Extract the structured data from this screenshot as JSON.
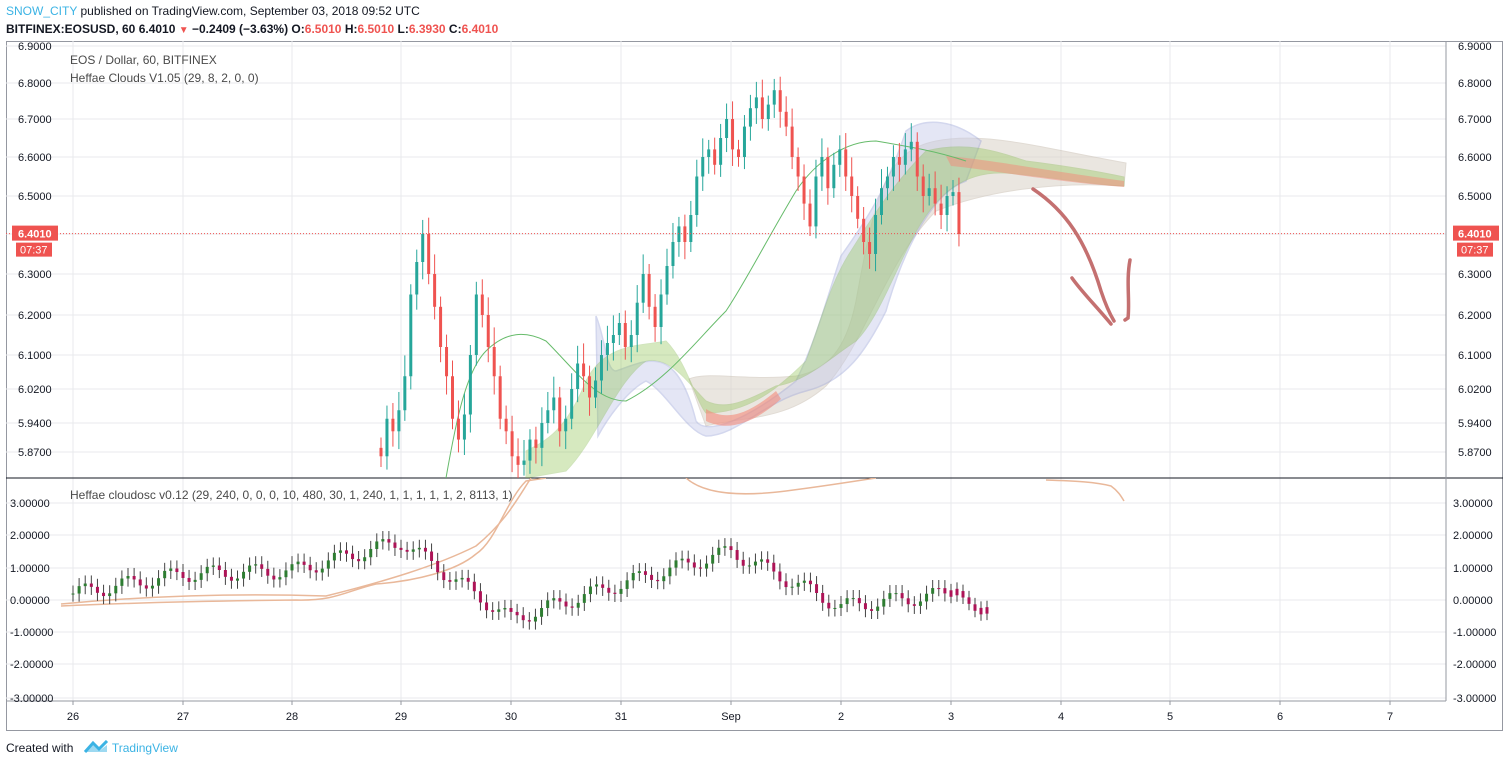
{
  "header": {
    "author": "SNOW_CITY",
    "published_text": "published on TradingView.com, September 03, 2018 09:52 UTC",
    "symbol": "BITFINEX:EOSUSD, 60",
    "last": "6.4010",
    "change": "−0.2409 (−3.63%)",
    "open_label": "O:",
    "open": "6.5010",
    "high_label": "H:",
    "high": "6.5010",
    "low_label": "L:",
    "low": "6.3930",
    "close_label": "C:",
    "close": "6.4010"
  },
  "main_pane": {
    "title": "EOS / Dollar, 60, BITFINEX",
    "indicator": "Heffae Clouds V1.05 (29, 8, 2, 0, 0)",
    "price_badge": "6.4010",
    "countdown_badge": "07:37"
  },
  "osc_pane": {
    "indicator": "Heffae cloudosc v0.12 (29, 240, 0, 0, 0, 10, 480, 30, 1, 240, 1, 1, 1, 1, 1, 2, 8113, 1)"
  },
  "footer": {
    "created_with": "Created with",
    "brand": "TradingView"
  },
  "colors": {
    "up": "#26a69a",
    "down": "#ef5350",
    "cloud_green": "#8bc34a",
    "cloud_red": "#f48a7a",
    "band_blue": "#9fa8da",
    "osc_line": "#e9b89a",
    "arrow": "#c47070",
    "grid": "#e9eaec"
  },
  "chart_data": [
    {
      "type": "candlestick",
      "title": "EOS / Dollar, 60, BITFINEX",
      "y_axis_ticks": [
        "6.9000",
        "6.8000",
        "6.7000",
        "6.6000",
        "6.5000",
        "6.4000",
        "6.3000",
        "6.2000",
        "6.1000",
        "6.0200",
        "5.9400",
        "5.8700"
      ],
      "y_range": [
        5.84,
        6.91
      ],
      "x_axis_ticks": [
        "26",
        "27",
        "28",
        "29",
        "30",
        "31",
        "Sep",
        "2",
        "3",
        "4",
        "5",
        "6",
        "7"
      ],
      "last_price": 6.401,
      "price_path_hourly_closes_from_Aug29_15h": [
        5.86,
        5.95,
        5.92,
        5.97,
        6.05,
        6.25,
        6.33,
        6.4,
        6.3,
        6.22,
        6.12,
        6.05,
        5.95,
        5.9,
        5.96,
        6.1,
        6.25,
        6.2,
        6.12,
        6.05,
        5.95,
        5.92,
        5.86,
        5.84,
        5.85,
        5.9,
        5.88,
        5.94,
        5.97,
        6.0,
        5.92,
        5.95,
        6.02,
        6.08,
        6.05,
        6.0,
        6.04,
        6.1,
        6.13,
        6.15,
        6.18,
        6.12,
        6.15,
        6.23,
        6.3,
        6.22,
        6.17,
        6.25,
        6.32,
        6.38,
        6.42,
        6.38,
        6.45,
        6.55,
        6.6,
        6.62,
        6.58,
        6.65,
        6.7,
        6.62,
        6.6,
        6.68,
        6.73,
        6.76,
        6.7,
        6.74,
        6.78,
        6.72,
        6.68,
        6.6,
        6.55,
        6.48,
        6.42,
        6.55,
        6.6,
        6.52,
        6.58,
        6.62,
        6.55,
        6.5,
        6.44,
        6.38,
        6.35,
        6.45,
        6.52,
        6.55,
        6.6,
        6.58,
        6.62,
        6.64,
        6.55,
        6.5,
        6.52,
        6.48,
        6.45,
        6.5,
        6.51,
        6.4
      ]
    },
    {
      "type": "oscillator",
      "title": "Heffae cloudosc v0.12",
      "y_axis_ticks": [
        "3.00000",
        "2.00000",
        "1.00000",
        "0.00000",
        "-1.00000",
        "-2.00000",
        "-3.00000"
      ],
      "y_range": [
        -3.2,
        3.7
      ],
      "osc_values_by_day": [
        {
          "x": "26",
          "value": 0.2
        },
        {
          "x": "27",
          "value": 0.8
        },
        {
          "x": "28",
          "value": 0.9
        },
        {
          "x": "29",
          "value": 1.8
        },
        {
          "x": "30",
          "value": -0.6
        },
        {
          "x": "31",
          "value": 0.5
        },
        {
          "x": "Sep",
          "value": 1.5
        },
        {
          "x": "2",
          "value": -0.2
        },
        {
          "x": "3",
          "value": 0.2
        }
      ]
    }
  ]
}
